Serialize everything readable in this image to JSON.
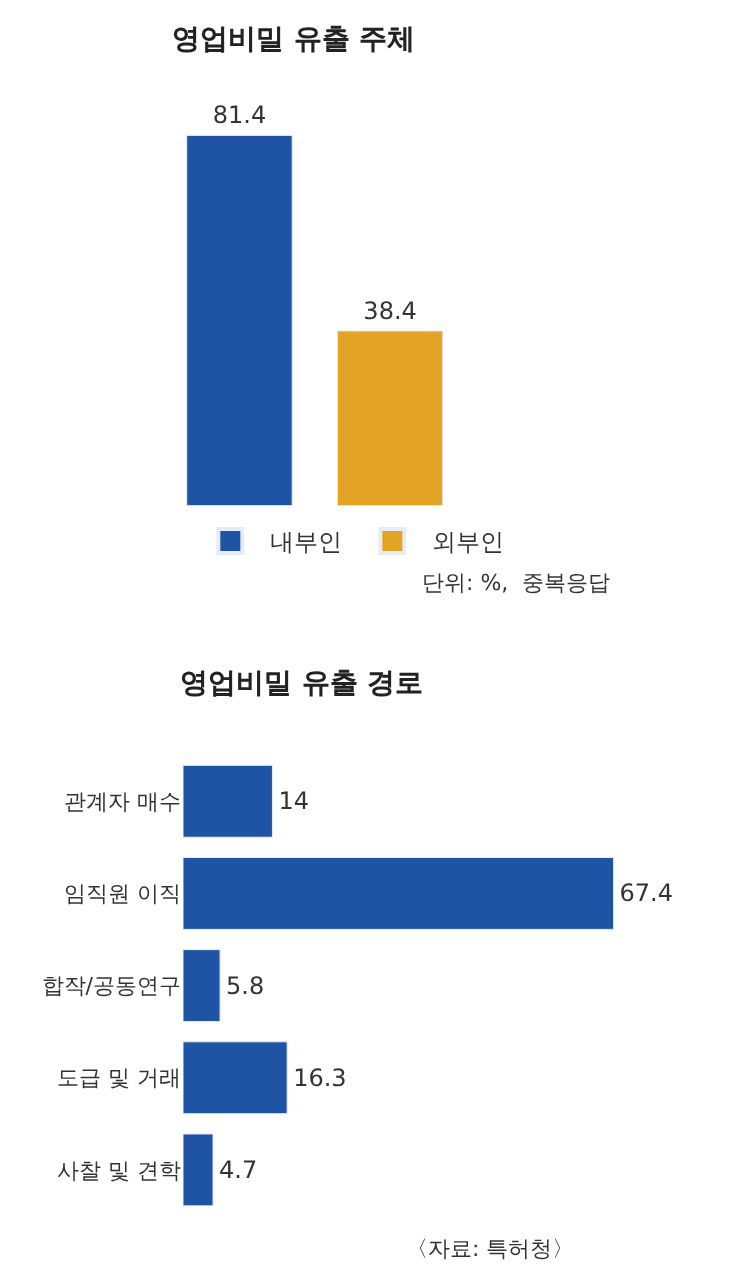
{
  "chart_data": [
    {
      "type": "bar",
      "title": "영업비밀 유출 주체",
      "categories": [
        null
      ],
      "series": [
        {
          "name": "내부인",
          "color": "#1f53a3",
          "values": [
            81.4
          ]
        },
        {
          "name": "외부인",
          "color": "#e3a324",
          "values": [
            38.4
          ]
        }
      ],
      "data_labels": true,
      "legend": "bottom",
      "annotations": [
        "단위: %,  중복응답"
      ]
    },
    {
      "type": "bar",
      "orientation": "horizontal",
      "title": "영업비밀 유출 경로",
      "categories": [
        "관계자 매수",
        "임직원 이직",
        "합작/공동연구",
        "도급 및 거래",
        "사찰 및 견학"
      ],
      "values": [
        14,
        67.4,
        5.8,
        16.3,
        4.7
      ],
      "color": "#1f53a3",
      "data_labels": true,
      "annotations": [
        "〈자료: 특허청〉"
      ]
    }
  ]
}
